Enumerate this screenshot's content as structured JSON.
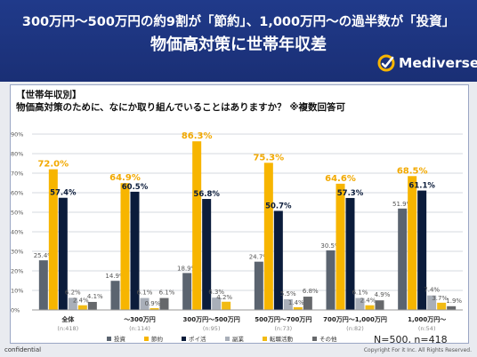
{
  "header": {
    "title_line1": "300万円～500万円の約9割が「節約」、1,000万円～の過半数が「投資」",
    "title_line2": "物価高対策に世帯年収差",
    "logo_text": "Mediverse"
  },
  "panel": {
    "segment_label": "【世帯年収別】",
    "question": "物価高対策のために、なにか取り組んでいることはありますか？ ※複数回答可",
    "sample_note": "N=500, n=418"
  },
  "footer": {
    "confidential": "confidential",
    "copyright": "Copyright For it Inc. All Rights Reserved."
  },
  "colors": {
    "header_bg": "#1f3784",
    "投資": "#5b6470",
    "節約": "#f7b500",
    "ポイ活": "#0b1c3b",
    "副業": "#a9afb9",
    "転職活動": "#f2bb14",
    "その他": "#66686b"
  },
  "chart_data": {
    "type": "bar",
    "ylim": [
      0,
      90
    ],
    "yticks": [
      "0%",
      "10%",
      "20%",
      "30%",
      "40%",
      "50%",
      "60%",
      "70%",
      "80%",
      "90%"
    ],
    "grid": true,
    "legend_position": "bottom",
    "categories": [
      "全体",
      "～300万円",
      "300万円～500万円",
      "500万円～700万円",
      "700万円～1,000万円",
      "1,000万円～"
    ],
    "sample_sizes": [
      "(n:418)",
      "(n:114)",
      "(n:95)",
      "(n:73)",
      "(n:82)",
      "(n:54)"
    ],
    "series": [
      {
        "name": "投資",
        "values": [
          25.4,
          14.9,
          18.9,
          24.7,
          30.5,
          51.9
        ],
        "labels": [
          "25.4%",
          "14.9%",
          "18.9%",
          "24.7%",
          "30.5%",
          "51.9%"
        ]
      },
      {
        "name": "節約",
        "values": [
          72.0,
          64.9,
          86.3,
          75.3,
          64.6,
          68.5
        ],
        "labels": [
          "72.0%",
          "64.9%",
          "86.3%",
          "75.3%",
          "64.6%",
          "68.5%"
        ]
      },
      {
        "name": "ポイ活",
        "values": [
          57.4,
          60.5,
          56.8,
          50.7,
          57.3,
          61.1
        ],
        "labels": [
          "57.4%",
          "60.5%",
          "56.8%",
          "50.7%",
          "57.3%",
          "61.1%"
        ]
      },
      {
        "name": "副業",
        "values": [
          6.2,
          6.1,
          6.3,
          5.5,
          6.1,
          7.4
        ],
        "labels": [
          "6.2%",
          "6.1%",
          "6.3%",
          "5.5%",
          "6.1%",
          "7.4%"
        ]
      },
      {
        "name": "転職活動",
        "values": [
          2.4,
          0.9,
          4.2,
          1.4,
          2.4,
          3.7
        ],
        "labels": [
          "2.4%",
          "0.9%",
          "4.2%",
          "1.4%",
          "2.4%",
          "3.7%"
        ]
      },
      {
        "name": "その他",
        "values": [
          4.1,
          6.1,
          0.0,
          6.8,
          4.9,
          1.9
        ],
        "labels": [
          "4.1%",
          "6.1%",
          "",
          "6.8%",
          "4.9%",
          "1.9%"
        ]
      }
    ]
  }
}
